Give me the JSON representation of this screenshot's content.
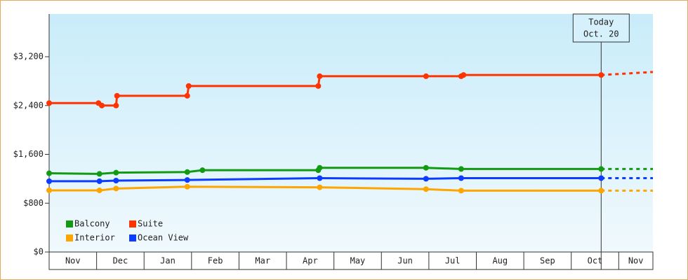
{
  "chart_data": {
    "type": "step-line",
    "xlim": [
      0,
      12.72
    ],
    "xticks": [
      {
        "value": 0,
        "label": "Nov"
      },
      {
        "value": 1,
        "label": "Dec"
      },
      {
        "value": 2,
        "label": "Jan"
      },
      {
        "value": 3,
        "label": "Feb"
      },
      {
        "value": 4,
        "label": "Mar"
      },
      {
        "value": 5,
        "label": "Apr"
      },
      {
        "value": 6,
        "label": "May"
      },
      {
        "value": 7,
        "label": "Jun"
      },
      {
        "value": 8,
        "label": "Jul"
      },
      {
        "value": 9,
        "label": "Aug"
      },
      {
        "value": 10,
        "label": "Sep"
      },
      {
        "value": 11,
        "label": "Oct"
      },
      {
        "value": 12,
        "label": "Nov"
      }
    ],
    "ylim": [
      0,
      3900
    ],
    "yticks": [
      {
        "value": 0,
        "label": "$0"
      },
      {
        "value": 800,
        "label": "$800"
      },
      {
        "value": 1600,
        "label": "$1,600"
      },
      {
        "value": 2400,
        "label": "$2,400"
      },
      {
        "value": 3200,
        "label": "$3,200"
      }
    ],
    "legend": "bottom-left",
    "annotation": {
      "lines": [
        "Today",
        "Oct. 20"
      ],
      "x": 11.63
    },
    "series": [
      {
        "name": "Balcony",
        "color": "#129a12",
        "x": [
          0,
          1.06,
          1.41,
          2.91,
          3.23,
          5.67,
          5.7,
          7.94,
          8.68,
          11.63
        ],
        "values": [
          1290,
          1280,
          1300,
          1310,
          1340,
          1340,
          1380,
          1380,
          1360,
          1360
        ],
        "forecast": {
          "x": [
            11.63,
            12.72
          ],
          "values": [
            1360,
            1360
          ]
        }
      },
      {
        "name": "Suite",
        "color": "#ff3300",
        "x": [
          0,
          1.04,
          1.11,
          1.41,
          1.43,
          2.91,
          2.94,
          5.67,
          5.7,
          7.94,
          8.68,
          8.73,
          11.63
        ],
        "values": [
          2440,
          2440,
          2400,
          2400,
          2560,
          2560,
          2720,
          2720,
          2880,
          2880,
          2880,
          2900,
          2900
        ],
        "forecast": {
          "x": [
            11.63,
            12.72
          ],
          "values": [
            2900,
            2950
          ]
        }
      },
      {
        "name": "Interior",
        "color": "#ffa500",
        "x": [
          0,
          1.06,
          1.41,
          2.91,
          5.7,
          7.94,
          8.68,
          11.63
        ],
        "values": [
          1010,
          1010,
          1040,
          1070,
          1060,
          1030,
          1005,
          1005
        ],
        "forecast": {
          "x": [
            11.63,
            12.72
          ],
          "values": [
            1005,
            1005
          ]
        }
      },
      {
        "name": "Ocean View",
        "color": "#0b3cff",
        "x": [
          0,
          1.06,
          1.41,
          2.91,
          5.7,
          7.94,
          8.68,
          11.63
        ],
        "values": [
          1160,
          1160,
          1170,
          1180,
          1210,
          1200,
          1210,
          1210
        ],
        "forecast": {
          "x": [
            11.63,
            12.72
          ],
          "values": [
            1210,
            1210
          ]
        }
      }
    ]
  }
}
